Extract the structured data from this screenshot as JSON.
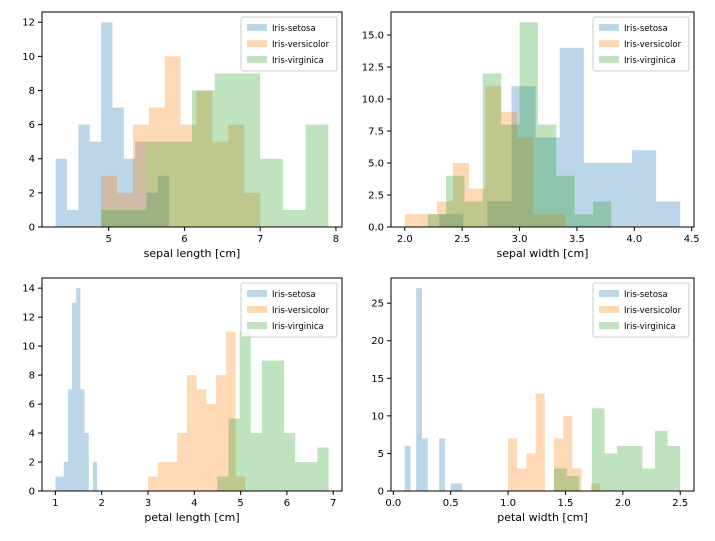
{
  "figure": {
    "colors": {
      "setosa": "#1f77b4",
      "versicolor": "#ff7f0e",
      "virginica": "#2ca02c"
    },
    "bar_alpha": 0.3
  },
  "chart_data": [
    {
      "type": "histogram",
      "xlabel": "sepal length [cm]",
      "ylabel": "",
      "xlim": [
        4.12,
        8.08
      ],
      "ylim": [
        0,
        12.6
      ],
      "xticks": [
        5,
        6,
        7,
        8
      ],
      "xtick_labels": [
        "5",
        "6",
        "7",
        "8"
      ],
      "yticks": [
        0,
        2,
        4,
        6,
        8,
        10,
        12
      ],
      "ytick_labels": [
        "0",
        "2",
        "4",
        "6",
        "8",
        "10",
        "12"
      ],
      "legend": {
        "position": "top-right",
        "entries": [
          "Iris-setosa",
          "Iris-versicolor",
          "Iris-virginica"
        ]
      },
      "series": [
        {
          "name": "Iris-setosa",
          "color": "#1f77b4",
          "bin_edges": [
            4.3,
            4.45,
            4.6,
            4.75,
            4.9,
            5.05,
            5.2,
            5.35,
            5.5,
            5.65,
            5.8
          ],
          "counts": [
            4,
            1,
            6,
            5,
            12,
            7,
            4,
            5,
            2,
            3
          ]
        },
        {
          "name": "Iris-versicolor",
          "color": "#ff7f0e",
          "bin_edges": [
            4.9,
            5.11,
            5.32,
            5.53,
            5.74,
            5.95,
            6.16,
            6.37,
            6.58,
            6.79,
            7.0
          ],
          "counts": [
            3,
            2,
            6,
            7,
            10,
            6,
            8,
            5,
            6,
            2
          ]
        },
        {
          "name": "Iris-virginica",
          "color": "#2ca02c",
          "bin_edges": [
            4.9,
            5.2,
            5.5,
            5.8,
            6.1,
            6.4,
            6.7,
            7.0,
            7.3,
            7.6,
            7.9
          ],
          "counts": [
            1,
            1,
            5,
            5,
            8,
            9,
            9,
            4,
            1,
            6
          ]
        }
      ]
    },
    {
      "type": "histogram",
      "xlabel": "sepal width [cm]",
      "ylabel": "",
      "xlim": [
        1.88,
        4.52
      ],
      "ylim": [
        0,
        16.8
      ],
      "xticks": [
        2.0,
        2.5,
        3.0,
        3.5,
        4.0,
        4.5
      ],
      "xtick_labels": [
        "2.0",
        "2.5",
        "3.0",
        "3.5",
        "4.0",
        "4.5"
      ],
      "yticks": [
        0,
        2.5,
        5,
        7.5,
        10,
        12.5,
        15
      ],
      "ytick_labels": [
        "0.0",
        "2.5",
        "5.0",
        "7.5",
        "10.0",
        "12.5",
        "15.0"
      ],
      "legend": {
        "position": "top-right",
        "entries": [
          "Iris-setosa",
          "Iris-versicolor",
          "Iris-virginica"
        ]
      },
      "series": [
        {
          "name": "Iris-setosa",
          "color": "#1f77b4",
          "bin_edges": [
            2.3,
            2.51,
            2.72,
            2.93,
            3.14,
            3.35,
            3.56,
            3.77,
            3.98,
            4.19,
            4.4
          ],
          "counts": [
            1,
            0,
            2,
            11,
            7,
            14,
            5,
            5,
            6,
            2
          ]
        },
        {
          "name": "Iris-versicolor",
          "color": "#ff7f0e",
          "bin_edges": [
            2.0,
            2.14,
            2.28,
            2.42,
            2.56,
            2.7,
            2.84,
            2.98,
            3.12,
            3.26,
            3.4
          ],
          "counts": [
            1,
            1,
            2,
            5,
            3,
            11,
            9,
            7,
            1,
            1
          ]
        },
        {
          "name": "Iris-virginica",
          "color": "#2ca02c",
          "bin_edges": [
            2.2,
            2.36,
            2.52,
            2.68,
            2.84,
            3.0,
            3.16,
            3.32,
            3.48,
            3.64,
            3.8
          ],
          "counts": [
            1,
            4,
            2,
            12,
            8,
            16,
            8,
            4,
            1,
            2
          ]
        }
      ]
    },
    {
      "type": "histogram",
      "xlabel": "petal length [cm]",
      "ylabel": "",
      "xlim": [
        0.71,
        7.19
      ],
      "ylim": [
        0,
        14.7
      ],
      "xticks": [
        1,
        2,
        3,
        4,
        5,
        6,
        7
      ],
      "xtick_labels": [
        "1",
        "2",
        "3",
        "4",
        "5",
        "6",
        "7"
      ],
      "yticks": [
        0,
        2,
        4,
        6,
        8,
        10,
        12,
        14
      ],
      "ytick_labels": [
        "0",
        "2",
        "4",
        "6",
        "8",
        "10",
        "12",
        "14"
      ],
      "legend": {
        "position": "top-right",
        "entries": [
          "Iris-setosa",
          "Iris-versicolor",
          "Iris-virginica"
        ]
      },
      "series": [
        {
          "name": "Iris-setosa",
          "color": "#1f77b4",
          "bin_edges": [
            1.0,
            1.09,
            1.18,
            1.27,
            1.36,
            1.45,
            1.54,
            1.63,
            1.72,
            1.81,
            1.9
          ],
          "counts": [
            1,
            1,
            2,
            7,
            13,
            14,
            7,
            4,
            0,
            2
          ]
        },
        {
          "name": "Iris-versicolor",
          "color": "#ff7f0e",
          "bin_edges": [
            3.0,
            3.21,
            3.42,
            3.63,
            3.84,
            4.05,
            4.26,
            4.47,
            4.68,
            4.89,
            5.1
          ],
          "counts": [
            1,
            2,
            2,
            4,
            8,
            7,
            6,
            8,
            11,
            1
          ]
        },
        {
          "name": "Iris-virginica",
          "color": "#2ca02c",
          "bin_edges": [
            4.5,
            4.74,
            4.98,
            5.22,
            5.46,
            5.7,
            5.94,
            6.18,
            6.42,
            6.66,
            6.9
          ],
          "counts": [
            1,
            5,
            11,
            4,
            9,
            9,
            4,
            2,
            2,
            3
          ]
        }
      ]
    },
    {
      "type": "histogram",
      "xlabel": "petal width [cm]",
      "ylabel": "",
      "xlim": [
        -0.02,
        2.62
      ],
      "ylim": [
        0,
        28.35
      ],
      "xticks": [
        0.0,
        0.5,
        1.0,
        1.5,
        2.0,
        2.5
      ],
      "xtick_labels": [
        "0.0",
        "0.5",
        "1.0",
        "1.5",
        "2.0",
        "2.5"
      ],
      "yticks": [
        0,
        5,
        10,
        15,
        20,
        25
      ],
      "ytick_labels": [
        "0",
        "5",
        "10",
        "15",
        "20",
        "25"
      ],
      "legend": {
        "position": "top-right",
        "entries": [
          "Iris-setosa",
          "Iris-versicolor",
          "Iris-virginica"
        ]
      },
      "series": [
        {
          "name": "Iris-setosa",
          "color": "#1f77b4",
          "bin_edges": [
            0.1,
            0.15,
            0.2,
            0.25,
            0.3,
            0.35,
            0.4,
            0.45,
            0.5,
            0.55,
            0.6
          ],
          "counts": [
            6,
            0,
            27,
            7,
            0,
            0,
            7,
            0,
            1,
            1
          ]
        },
        {
          "name": "Iris-versicolor",
          "color": "#ff7f0e",
          "bin_edges": [
            1.0,
            1.08,
            1.16,
            1.24,
            1.32,
            1.4,
            1.48,
            1.56,
            1.64,
            1.72,
            1.8
          ],
          "counts": [
            7,
            3,
            5,
            13,
            0,
            7,
            10,
            3,
            0,
            1
          ]
        },
        {
          "name": "Iris-virginica",
          "color": "#2ca02c",
          "bin_edges": [
            1.4,
            1.51,
            1.62,
            1.73,
            1.84,
            1.95,
            2.06,
            2.17,
            2.28,
            2.39,
            2.5
          ],
          "counts": [
            3,
            2,
            0,
            11,
            5,
            6,
            6,
            3,
            8,
            6
          ]
        }
      ]
    }
  ]
}
